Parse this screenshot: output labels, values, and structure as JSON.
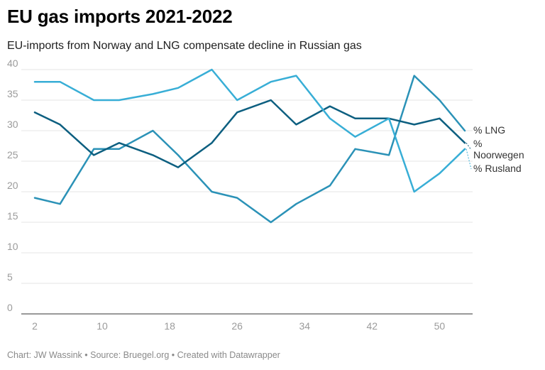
{
  "title": "EU gas imports 2021-2022",
  "subtitle": "EU-imports from Norway and LNG compensate decline in Russian gas",
  "footer": "Chart: JW Wassink • Source: Bruegel.org • Created with Datawrapper",
  "chart_data": {
    "type": "line",
    "title": "EU gas imports 2021-2022",
    "xlabel": "",
    "ylabel": "",
    "x": [
      2,
      5,
      9,
      12,
      16,
      19,
      23,
      26,
      30,
      33,
      37,
      40,
      44,
      47,
      50,
      53
    ],
    "xlim": [
      2,
      53
    ],
    "xticks": [
      2,
      10,
      18,
      26,
      34,
      42,
      50
    ],
    "ylim": [
      0,
      40
    ],
    "yticks": [
      0,
      5,
      10,
      15,
      20,
      25,
      30,
      35,
      40
    ],
    "grid": true,
    "series": [
      {
        "name": "% LNG",
        "label_lines": [
          "% LNG"
        ],
        "color": "#2b92b7",
        "values": [
          19,
          18,
          27,
          27,
          30,
          26,
          20,
          19,
          15,
          18,
          21,
          27,
          26,
          39,
          35,
          30
        ]
      },
      {
        "name": "% Noorwegen",
        "label_lines": [
          "%",
          "Noorwegen"
        ],
        "color": "#0d5f80",
        "values": [
          33,
          31,
          26,
          28,
          26,
          24,
          28,
          33,
          35,
          31,
          34,
          32,
          32,
          31,
          32,
          28
        ]
      },
      {
        "name": "% Rusland",
        "label_lines": [
          "% Rusland"
        ],
        "color": "#38aed6",
        "values": [
          38,
          38,
          35,
          35,
          36,
          37,
          40,
          35,
          38,
          39,
          32,
          29,
          32,
          20,
          23,
          27
        ]
      }
    ]
  }
}
